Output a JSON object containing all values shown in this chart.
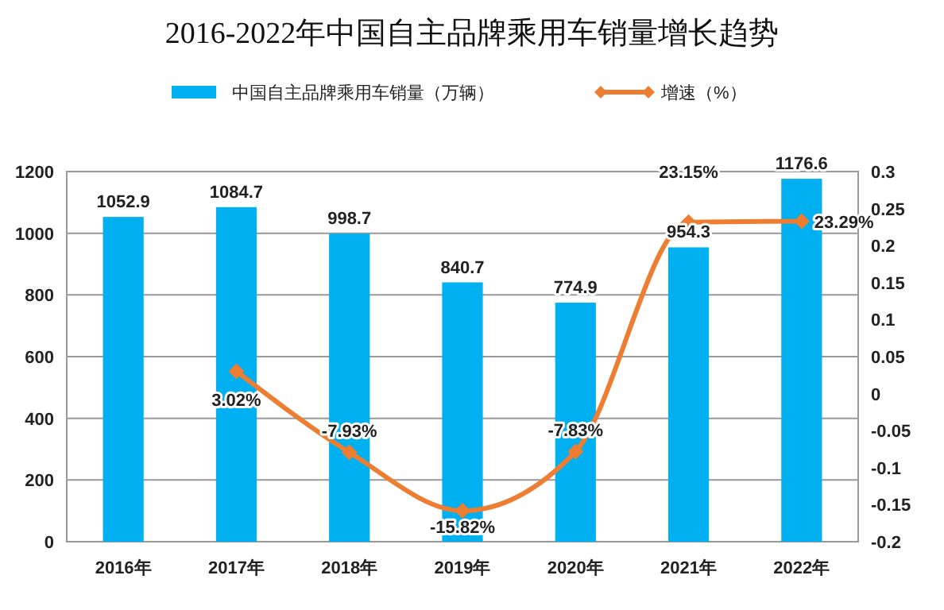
{
  "chart_data": {
    "type": "bar",
    "title": "2016-2022年中国自主品牌乘用车销量增长趋势",
    "categories": [
      "2016年",
      "2017年",
      "2018年",
      "2019年",
      "2020年",
      "2021年",
      "2022年"
    ],
    "series": [
      {
        "name": "中国自主品牌乘用车销量（万辆）",
        "color": "#00b0f0",
        "values": [
          1052.9,
          1084.7,
          998.7,
          840.7,
          774.9,
          954.3,
          1176.6
        ],
        "value_labels": [
          "1052.9",
          "1084.7",
          "998.7",
          "840.7",
          "774.9",
          "954.3",
          "1176.6"
        ]
      },
      {
        "name": "增速（%）",
        "type": "line",
        "axis": "y2",
        "color": "#ed7d31",
        "marker": "diamond",
        "values": [
          null,
          0.0302,
          -0.0793,
          -0.1582,
          -0.0783,
          0.2315,
          0.2329
        ],
        "value_labels": [
          null,
          "3.02%",
          "-7.93%",
          "-15.82%",
          "-7.83%",
          "23.15%",
          "23.29%"
        ]
      }
    ],
    "ylim": [
      0,
      1200
    ],
    "yticks": [
      0,
      200,
      400,
      600,
      800,
      1000,
      1200
    ],
    "y2lim": [
      -0.2,
      0.3
    ],
    "y2ticks": [
      {
        "value": -0.2,
        "label": "-0.2"
      },
      {
        "value": -0.15,
        "label": "-0.15"
      },
      {
        "value": -0.1,
        "label": "-0.1"
      },
      {
        "value": -0.05,
        "label": "-0.05"
      },
      {
        "value": 0,
        "label": "0"
      },
      {
        "value": 0.05,
        "label": "0.05"
      },
      {
        "value": 0.1,
        "label": "0.1"
      },
      {
        "value": 0.15,
        "label": "0.15"
      },
      {
        "value": 0.2,
        "label": "0.2"
      },
      {
        "value": 0.25,
        "label": "0.25"
      },
      {
        "value": 0.3,
        "label": "0.3"
      }
    ],
    "grid": "y",
    "legend": "top"
  }
}
